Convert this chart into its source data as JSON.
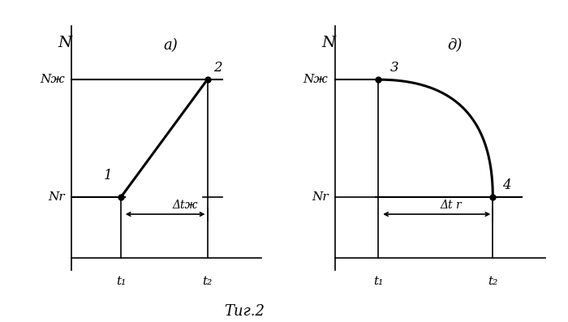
{
  "fig_width": 7.0,
  "fig_height": 3.97,
  "dpi": 100,
  "background": "#ffffff",
  "line_color": "#000000",
  "lw_thick": 2.2,
  "lw_med": 1.5,
  "lw_thin": 1.2,
  "panel_a": {
    "label": "a)",
    "Nr": 0.3,
    "Nzh": 0.78,
    "t1": 0.35,
    "t2": 0.75,
    "ylabel_N": "N",
    "label_Nr": "Nr",
    "label_Nzh": "Nж",
    "label_t1": "t₁",
    "label_t2": "t₂",
    "label_dt": "Δtж",
    "point1_label": "1",
    "point2_label": "2"
  },
  "panel_b": {
    "label": "д)",
    "Nr": 0.3,
    "Nzh": 0.78,
    "t1": 0.3,
    "t2": 0.78,
    "ylabel_N": "N",
    "label_Nr": "Nr",
    "label_Nzh": "Nж",
    "label_t1": "t₁",
    "label_t2": "t₂",
    "label_dt": "Δt r",
    "point3_label": "3",
    "point4_label": "4"
  },
  "caption": "Τиг.2"
}
